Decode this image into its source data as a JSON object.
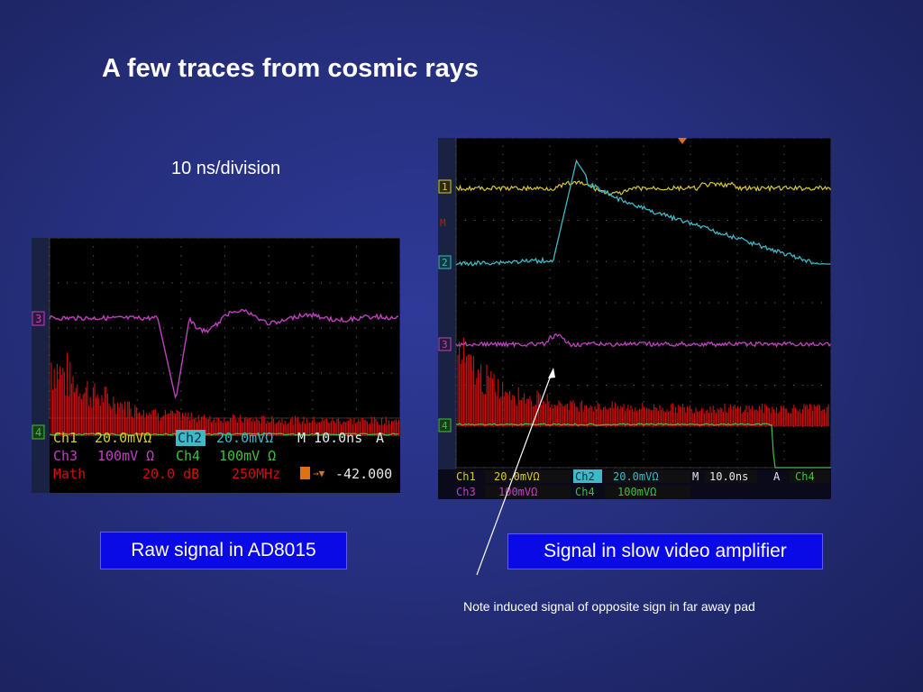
{
  "slide": {
    "title": "A few traces from cosmic rays",
    "timebase_label": "10 ns/division",
    "raw_label": "Raw signal in AD8015",
    "slow_label": "Signal in slow video amplifier",
    "note": "Note induced signal of opposite sign in far away pad"
  },
  "scope1": {
    "markers": [
      "3",
      "4"
    ],
    "status": {
      "row1": [
        "Ch1",
        "20.0mVΩ",
        "Ch2",
        "20.0mVΩ",
        "M 10.0ns",
        "A"
      ],
      "row2": [
        "Ch3",
        "100mV Ω",
        "Ch4",
        "100mV Ω"
      ],
      "row3": [
        "Math",
        "20.0 dB",
        "250MHz",
        "-42.000"
      ]
    }
  },
  "scope2": {
    "markers": [
      "1",
      "M",
      "2",
      "3",
      "4"
    ],
    "status": {
      "row1": [
        "Ch1",
        "20.0mVΩ",
        "Ch2",
        "20.0mVΩ",
        "M",
        "10.0ns",
        "A",
        "Ch4"
      ],
      "row2": [
        "Ch3",
        "100mVΩ",
        "Ch4",
        "100mVΩ"
      ]
    }
  },
  "colors": {
    "ch1": "#d8c83a",
    "ch2": "#3fb8c8",
    "ch3": "#c040c0",
    "ch4": "#40c040",
    "math": "#d01010"
  }
}
